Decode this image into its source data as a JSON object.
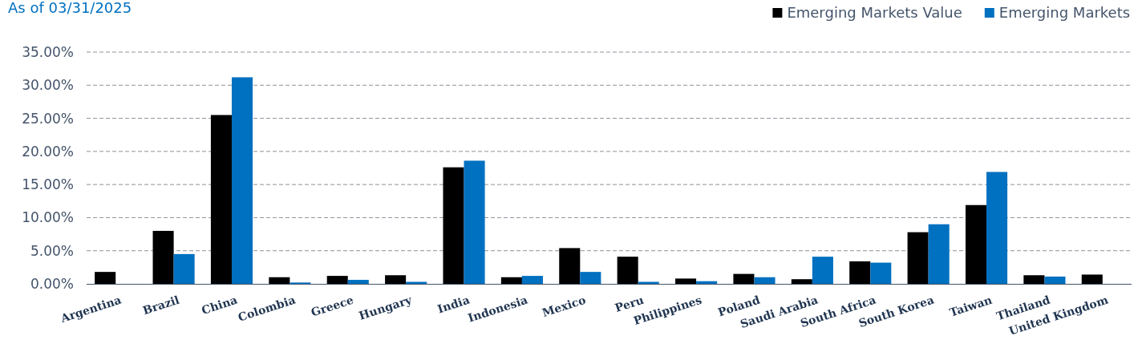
{
  "chart_data": {
    "type": "bar",
    "title": "As of 03/31/2025",
    "categories": [
      "Argentina",
      "Brazil",
      "China",
      "Colombia",
      "Greece",
      "Hungary",
      "India",
      "Indonesia",
      "Mexico",
      "Peru",
      "Philippines",
      "Poland",
      "Saudi Arabia",
      "South Africa",
      "South Korea",
      "Taiwan",
      "Thailand",
      "United Kingdom"
    ],
    "series": [
      {
        "name": "Emerging Markets Value",
        "color": "#000000",
        "values": [
          1.8,
          8.0,
          25.5,
          1.0,
          1.2,
          1.3,
          17.6,
          1.0,
          5.4,
          4.1,
          0.8,
          1.5,
          0.7,
          3.4,
          7.8,
          11.9,
          1.3,
          1.4
        ]
      },
      {
        "name": "Emerging Markets",
        "color": "#0070c0",
        "values": [
          null,
          4.5,
          31.2,
          0.2,
          0.6,
          0.3,
          18.6,
          1.2,
          1.8,
          0.3,
          0.4,
          1.0,
          4.1,
          3.2,
          9.0,
          16.9,
          1.1,
          null
        ]
      }
    ],
    "ylim": [
      0,
      35
    ],
    "yticks": [
      {
        "value": 0,
        "label": "0.00%"
      },
      {
        "value": 5,
        "label": "5.00%"
      },
      {
        "value": 10,
        "label": "10.00%"
      },
      {
        "value": 15,
        "label": "15.00%"
      },
      {
        "value": 20,
        "label": "20.00%"
      },
      {
        "value": 25,
        "label": "25.00%"
      },
      {
        "value": 30,
        "label": "30.00%"
      },
      {
        "value": 35,
        "label": "35.00%"
      }
    ],
    "grid": "y",
    "legend": "top right"
  }
}
